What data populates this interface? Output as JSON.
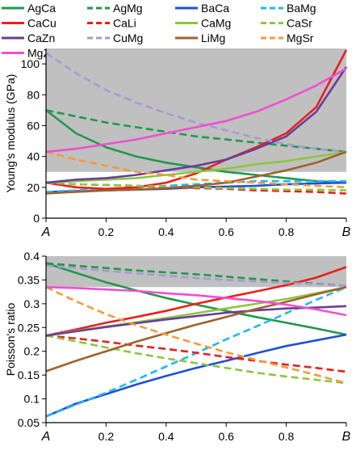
{
  "legend": {
    "placement": "top",
    "items": [
      {
        "name": "AgCa",
        "color": "#1e9a4a",
        "dash": false
      },
      {
        "name": "AgMg",
        "color": "#1e9a4a",
        "dash": true
      },
      {
        "name": "BaCa",
        "color": "#1f4fd8",
        "dash": false
      },
      {
        "name": "BaMg",
        "color": "#1fb8f0",
        "dash": true
      },
      {
        "name": "CaCu",
        "color": "#e8201c",
        "dash": false
      },
      {
        "name": "CaLi",
        "color": "#e8201c",
        "dash": true
      },
      {
        "name": "CaMg",
        "color": "#8cc63f",
        "dash": false
      },
      {
        "name": "CaSr",
        "color": "#8cc63f",
        "dash": true
      },
      {
        "name": "CaZn",
        "color": "#6a3d9a",
        "dash": false
      },
      {
        "name": "CuMg",
        "color": "#a99ad1",
        "dash": true
      },
      {
        "name": "LiMg",
        "color": "#a0612a",
        "dash": false
      },
      {
        "name": "MgSr",
        "color": "#f59a3a",
        "dash": true
      },
      {
        "name": "MgZn",
        "color": "#f04fd0",
        "dash": false
      }
    ]
  },
  "chart_data": [
    {
      "type": "line",
      "ylabel": "Young's modulus (GPa)",
      "xlim": [
        0,
        1
      ],
      "ylim": [
        0,
        110
      ],
      "yticks": [
        0,
        20,
        40,
        60,
        80,
        100
      ],
      "xticks": [
        {
          "v": 0,
          "label": "A",
          "italic": true
        },
        {
          "v": 0.2,
          "label": "0.2"
        },
        {
          "v": 0.4,
          "label": "0.4"
        },
        {
          "v": 0.6,
          "label": "0.6"
        },
        {
          "v": 0.8,
          "label": "0.8"
        },
        {
          "v": 1,
          "label": "B",
          "italic": true
        }
      ],
      "shaded_band": [
        30,
        110
      ],
      "x": [
        0,
        0.1,
        0.2,
        0.3,
        0.4,
        0.5,
        0.6,
        0.7,
        0.8,
        0.9,
        1
      ],
      "series": [
        {
          "name": "AgCa",
          "values": [
            70,
            55,
            46,
            40,
            36,
            33,
            30,
            28,
            26,
            24,
            23
          ]
        },
        {
          "name": "AgMg",
          "values": [
            70,
            66,
            62,
            59,
            56,
            53,
            51,
            49,
            47,
            45,
            43
          ]
        },
        {
          "name": "BaCa",
          "values": [
            17,
            17.5,
            18,
            18.5,
            19,
            20,
            20.5,
            21,
            22,
            22.5,
            23
          ]
        },
        {
          "name": "BaMg",
          "values": [
            17,
            18,
            19,
            20,
            21,
            22,
            23,
            24,
            24,
            24,
            24
          ]
        },
        {
          "name": "CaCu",
          "values": [
            23,
            20,
            19,
            20,
            23,
            29,
            38,
            46,
            55,
            72,
            109
          ]
        },
        {
          "name": "CaLi",
          "values": [
            23,
            22,
            21.5,
            21,
            20,
            19.5,
            19,
            18,
            17.5,
            17,
            16
          ]
        },
        {
          "name": "CaMg",
          "values": [
            23,
            24,
            25,
            26,
            28,
            30,
            32,
            35,
            37,
            40,
            43
          ]
        },
        {
          "name": "CaSr",
          "values": [
            23,
            22,
            21.5,
            21,
            20.5,
            20,
            19.5,
            19,
            18.5,
            18.5,
            18
          ]
        },
        {
          "name": "CaZn",
          "values": [
            23,
            25,
            26,
            28,
            31,
            34,
            38,
            45,
            53,
            69,
            98
          ]
        },
        {
          "name": "CuMg",
          "values": [
            107,
            94,
            83,
            75,
            68,
            62,
            57,
            52,
            48,
            45,
            43
          ]
        },
        {
          "name": "LiMg",
          "values": [
            16,
            17,
            18,
            18.5,
            19.5,
            21,
            23,
            27,
            31,
            36,
            43
          ]
        },
        {
          "name": "MgSr",
          "values": [
            43,
            38,
            34,
            30,
            28,
            25,
            24,
            23,
            22,
            21,
            20
          ]
        },
        {
          "name": "MgZn",
          "values": [
            43,
            45,
            48,
            51,
            55,
            59,
            63,
            69,
            77,
            86,
            97
          ]
        }
      ]
    },
    {
      "type": "line",
      "ylabel": "Poisson's ratio",
      "xlim": [
        0,
        1
      ],
      "ylim": [
        0.05,
        0.4
      ],
      "yticks": [
        0.05,
        0.1,
        0.15,
        0.2,
        0.25,
        0.3,
        0.35,
        0.4
      ],
      "xticks": [
        {
          "v": 0,
          "label": "A",
          "italic": true
        },
        {
          "v": 0.2,
          "label": "0.2"
        },
        {
          "v": 0.4,
          "label": "0.4"
        },
        {
          "v": 0.6,
          "label": "0.6"
        },
        {
          "v": 0.8,
          "label": "0.8"
        },
        {
          "v": 1,
          "label": "B",
          "italic": true
        }
      ],
      "shaded_band": [
        0.335,
        0.4
      ],
      "x": [
        0,
        0.1,
        0.2,
        0.3,
        0.4,
        0.5,
        0.6,
        0.7,
        0.8,
        0.9,
        1
      ],
      "series": [
        {
          "name": "AgCa",
          "values": [
            0.385,
            0.365,
            0.345,
            0.328,
            0.312,
            0.298,
            0.285,
            0.272,
            0.26,
            0.248,
            0.235
          ]
        },
        {
          "name": "AgMg",
          "values": [
            0.385,
            0.38,
            0.375,
            0.37,
            0.366,
            0.362,
            0.357,
            0.352,
            0.347,
            0.342,
            0.338
          ]
        },
        {
          "name": "BaCa",
          "values": [
            0.063,
            0.09,
            0.11,
            0.13,
            0.148,
            0.165,
            0.18,
            0.196,
            0.211,
            0.223,
            0.235
          ]
        },
        {
          "name": "BaMg",
          "values": [
            0.063,
            0.088,
            0.113,
            0.14,
            0.168,
            0.196,
            0.225,
            0.252,
            0.28,
            0.308,
            0.335
          ]
        },
        {
          "name": "CaCu",
          "values": [
            0.233,
            0.246,
            0.26,
            0.272,
            0.285,
            0.3,
            0.313,
            0.326,
            0.339,
            0.355,
            0.377
          ]
        },
        {
          "name": "CaLi",
          "values": [
            0.233,
            0.227,
            0.22,
            0.212,
            0.205,
            0.197,
            0.188,
            0.18,
            0.172,
            0.165,
            0.157
          ]
        },
        {
          "name": "CaMg",
          "values": [
            0.233,
            0.243,
            0.252,
            0.261,
            0.27,
            0.28,
            0.29,
            0.3,
            0.31,
            0.322,
            0.335
          ]
        },
        {
          "name": "CaSr",
          "values": [
            0.233,
            0.221,
            0.208,
            0.196,
            0.185,
            0.175,
            0.165,
            0.155,
            0.147,
            0.14,
            0.133
          ]
        },
        {
          "name": "CaZn",
          "values": [
            0.233,
            0.242,
            0.251,
            0.259,
            0.267,
            0.274,
            0.281,
            0.286,
            0.29,
            0.292,
            0.295
          ]
        },
        {
          "name": "CuMg",
          "values": [
            0.38,
            0.375,
            0.369,
            0.364,
            0.359,
            0.354,
            0.35,
            0.347,
            0.344,
            0.341,
            0.338
          ]
        },
        {
          "name": "LiMg",
          "values": [
            0.158,
            0.18,
            0.2,
            0.22,
            0.238,
            0.256,
            0.272,
            0.289,
            0.304,
            0.32,
            0.335
          ]
        },
        {
          "name": "MgSr",
          "values": [
            0.335,
            0.305,
            0.278,
            0.255,
            0.235,
            0.216,
            0.198,
            0.182,
            0.166,
            0.15,
            0.133
          ]
        },
        {
          "name": "MgZn",
          "values": [
            0.335,
            0.333,
            0.33,
            0.327,
            0.322,
            0.318,
            0.312,
            0.306,
            0.298,
            0.288,
            0.276
          ]
        }
      ]
    }
  ]
}
